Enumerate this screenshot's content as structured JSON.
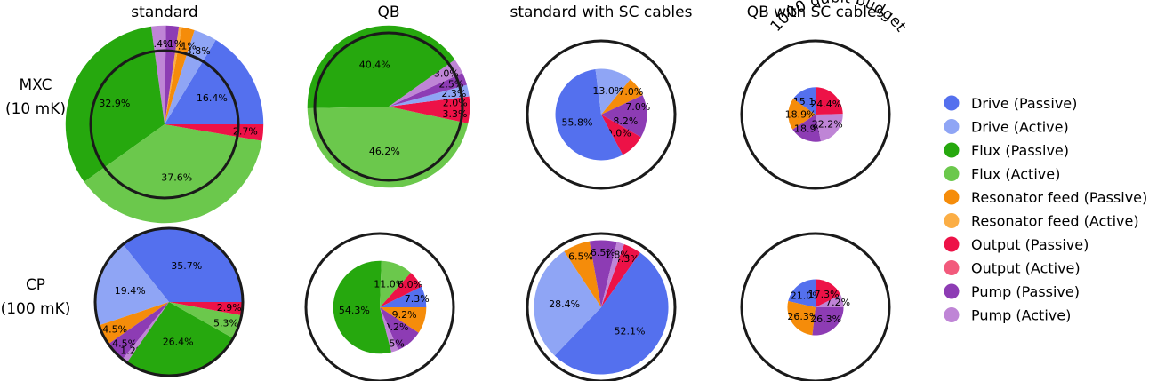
{
  "column_titles": [
    "standard",
    "QB",
    "standard with SC cables",
    "QB with SC cables"
  ],
  "row_labels": [
    {
      "line1": "MXC",
      "line2": "(10 mK)"
    },
    {
      "line1": "CP",
      "line2": "(100 mK)"
    }
  ],
  "budget_label": "1000 qubit budget",
  "colors": {
    "drive_passive": "#5470ee",
    "drive_active": "#8fa5f5",
    "flux_passive": "#26a80e",
    "flux_active": "#6bc84c",
    "resonator_passive": "#f58c0a",
    "resonator_active": "#fbae45",
    "output_passive": "#ed1247",
    "output_active": "#f25a7c",
    "pump_passive": "#8d3cb4",
    "pump_active": "#bf85d6"
  },
  "legend": [
    {
      "key": "drive_passive",
      "label": "Drive (Passive)"
    },
    {
      "key": "drive_active",
      "label": "Drive (Active)"
    },
    {
      "key": "flux_passive",
      "label": "Flux (Passive)"
    },
    {
      "key": "flux_active",
      "label": "Flux (Active)"
    },
    {
      "key": "resonator_passive",
      "label": "Resonator feed (Passive)"
    },
    {
      "key": "resonator_active",
      "label": "Resonator feed (Active)"
    },
    {
      "key": "output_passive",
      "label": "Output (Passive)"
    },
    {
      "key": "output_active",
      "label": "Output (Active)"
    },
    {
      "key": "pump_passive",
      "label": "Pump (Passive)"
    },
    {
      "key": "pump_active",
      "label": "Pump (Active)"
    }
  ],
  "chart_data": [
    {
      "type": "pie",
      "row": "MXC (10 mK)",
      "column": "standard",
      "relative_size": 1.34,
      "slices": [
        {
          "key": "drive_passive",
          "value": 16.4,
          "label": "16.4%"
        },
        {
          "key": "drive_active",
          "value": 3.8,
          "label": "3.8%"
        },
        {
          "key": "resonator_passive",
          "value": 2.1,
          "label": "2.1%"
        },
        {
          "key": "resonator_active",
          "value": 0.5,
          "label": ""
        },
        {
          "key": "pump_passive",
          "value": 2.1,
          "label": "2.1%"
        },
        {
          "key": "pump_active",
          "value": 2.4,
          "label": "2.4%"
        },
        {
          "key": "flux_passive",
          "value": 32.9,
          "label": "32.9%"
        },
        {
          "key": "flux_active",
          "value": 37.6,
          "label": "37.6%"
        },
        {
          "key": "output_passive",
          "value": 2.7,
          "label": "2.7%"
        }
      ]
    },
    {
      "type": "pie",
      "row": "MXC (10 mK)",
      "column": "QB",
      "relative_size": 1.1,
      "slices": [
        {
          "key": "output_passive",
          "value": 2.0,
          "label": "2.0%"
        },
        {
          "key": "drive_active",
          "value": 2.3,
          "label": "2.3%"
        },
        {
          "key": "pump_passive",
          "value": 2.5,
          "label": "2.5%"
        },
        {
          "key": "pump_active",
          "value": 3.0,
          "label": "3.0%"
        },
        {
          "key": "flux_passive",
          "value": 40.4,
          "label": "40.4%"
        },
        {
          "key": "flux_active",
          "value": 46.2,
          "label": "46.2%"
        },
        {
          "key": "output_passive",
          "value": 3.3,
          "label": "3.3%"
        }
      ]
    },
    {
      "type": "pie",
      "row": "MXC (10 mK)",
      "column": "standard with SC cables",
      "relative_size": 0.62,
      "slices": [
        {
          "key": "pump_passive",
          "value": 8.2,
          "label": "8.2%"
        },
        {
          "key": "output_passive",
          "value": 9.0,
          "label": "9.0%"
        },
        {
          "key": "drive_passive",
          "value": 55.8,
          "label": "55.8%"
        },
        {
          "key": "drive_active",
          "value": 13.0,
          "label": "13.0%"
        },
        {
          "key": "resonator_passive",
          "value": 7.0,
          "label": "7.0%"
        },
        {
          "key": "pump_passive",
          "value": 7.0,
          "label": "7.0%"
        }
      ]
    },
    {
      "type": "pie",
      "row": "MXC (10 mK)",
      "column": "QB with SC cables",
      "relative_size": 0.37,
      "slices": [
        {
          "key": "drive_passive",
          "value": 15.1,
          "label": "15.1%"
        },
        {
          "key": "resonator_passive",
          "value": 18.9,
          "label": "18.9%"
        },
        {
          "key": "pump_passive",
          "value": 18.9,
          "label": "18.9%"
        },
        {
          "key": "pump_active",
          "value": 22.2,
          "label": "22.2%"
        },
        {
          "key": "output_passive",
          "value": 24.4,
          "label": "24.4%"
        }
      ]
    },
    {
      "type": "pie",
      "row": "CP (100 mK)",
      "column": "standard",
      "relative_size": 1.0,
      "slices": [
        {
          "key": "drive_passive",
          "value": 35.7,
          "label": "35.7%"
        },
        {
          "key": "drive_active",
          "value": 19.4,
          "label": "19.4%"
        },
        {
          "key": "resonator_passive",
          "value": 4.5,
          "label": "4.5%"
        },
        {
          "key": "pump_passive",
          "value": 4.5,
          "label": "4.5%"
        },
        {
          "key": "pump_active",
          "value": 1.2,
          "label": "1.2%"
        },
        {
          "key": "flux_passive",
          "value": 26.4,
          "label": "26.4%"
        },
        {
          "key": "flux_active",
          "value": 5.3,
          "label": "5.3%"
        },
        {
          "key": "output_passive",
          "value": 2.9,
          "label": "2.9%"
        }
      ]
    },
    {
      "type": "pie",
      "row": "CP (100 mK)",
      "column": "QB",
      "relative_size": 0.63,
      "slices": [
        {
          "key": "resonator_passive",
          "value": 9.2,
          "label": "9.2%"
        },
        {
          "key": "pump_passive",
          "value": 9.2,
          "label": "9.2%"
        },
        {
          "key": "pump_active",
          "value": 2.5,
          "label": "2.5%"
        },
        {
          "key": "flux_passive",
          "value": 54.3,
          "label": "54.3%"
        },
        {
          "key": "flux_active",
          "value": 11.0,
          "label": "11.0%"
        },
        {
          "key": "output_passive",
          "value": 6.0,
          "label": "6.0%"
        },
        {
          "key": "drive_passive",
          "value": 7.3,
          "label": "7.3%"
        }
      ]
    },
    {
      "type": "pie",
      "row": "CP (100 mK)",
      "column": "standard with SC cables",
      "relative_size": 0.91,
      "slices": [
        {
          "key": "output_passive",
          "value": 4.3,
          "label": "4.3%"
        },
        {
          "key": "drive_passive",
          "value": 52.1,
          "label": "52.1%"
        },
        {
          "key": "drive_active",
          "value": 28.4,
          "label": "28.4%"
        },
        {
          "key": "resonator_passive",
          "value": 6.5,
          "label": "6.5%"
        },
        {
          "key": "pump_passive",
          "value": 6.5,
          "label": "6.5%"
        },
        {
          "key": "pump_active",
          "value": 1.8,
          "label": "1.8%"
        }
      ]
    },
    {
      "type": "pie",
      "row": "CP (100 mK)",
      "column": "QB with SC cables",
      "relative_size": 0.38,
      "slices": [
        {
          "key": "drive_passive",
          "value": 21.0,
          "label": "21.0%"
        },
        {
          "key": "resonator_passive",
          "value": 26.3,
          "label": "26.3%"
        },
        {
          "key": "pump_passive",
          "value": 26.3,
          "label": "26.3%"
        },
        {
          "key": "pump_active",
          "value": 7.2,
          "label": "7.2%"
        },
        {
          "key": "output_passive",
          "value": 17.3,
          "label": "17.3%"
        }
      ]
    }
  ]
}
